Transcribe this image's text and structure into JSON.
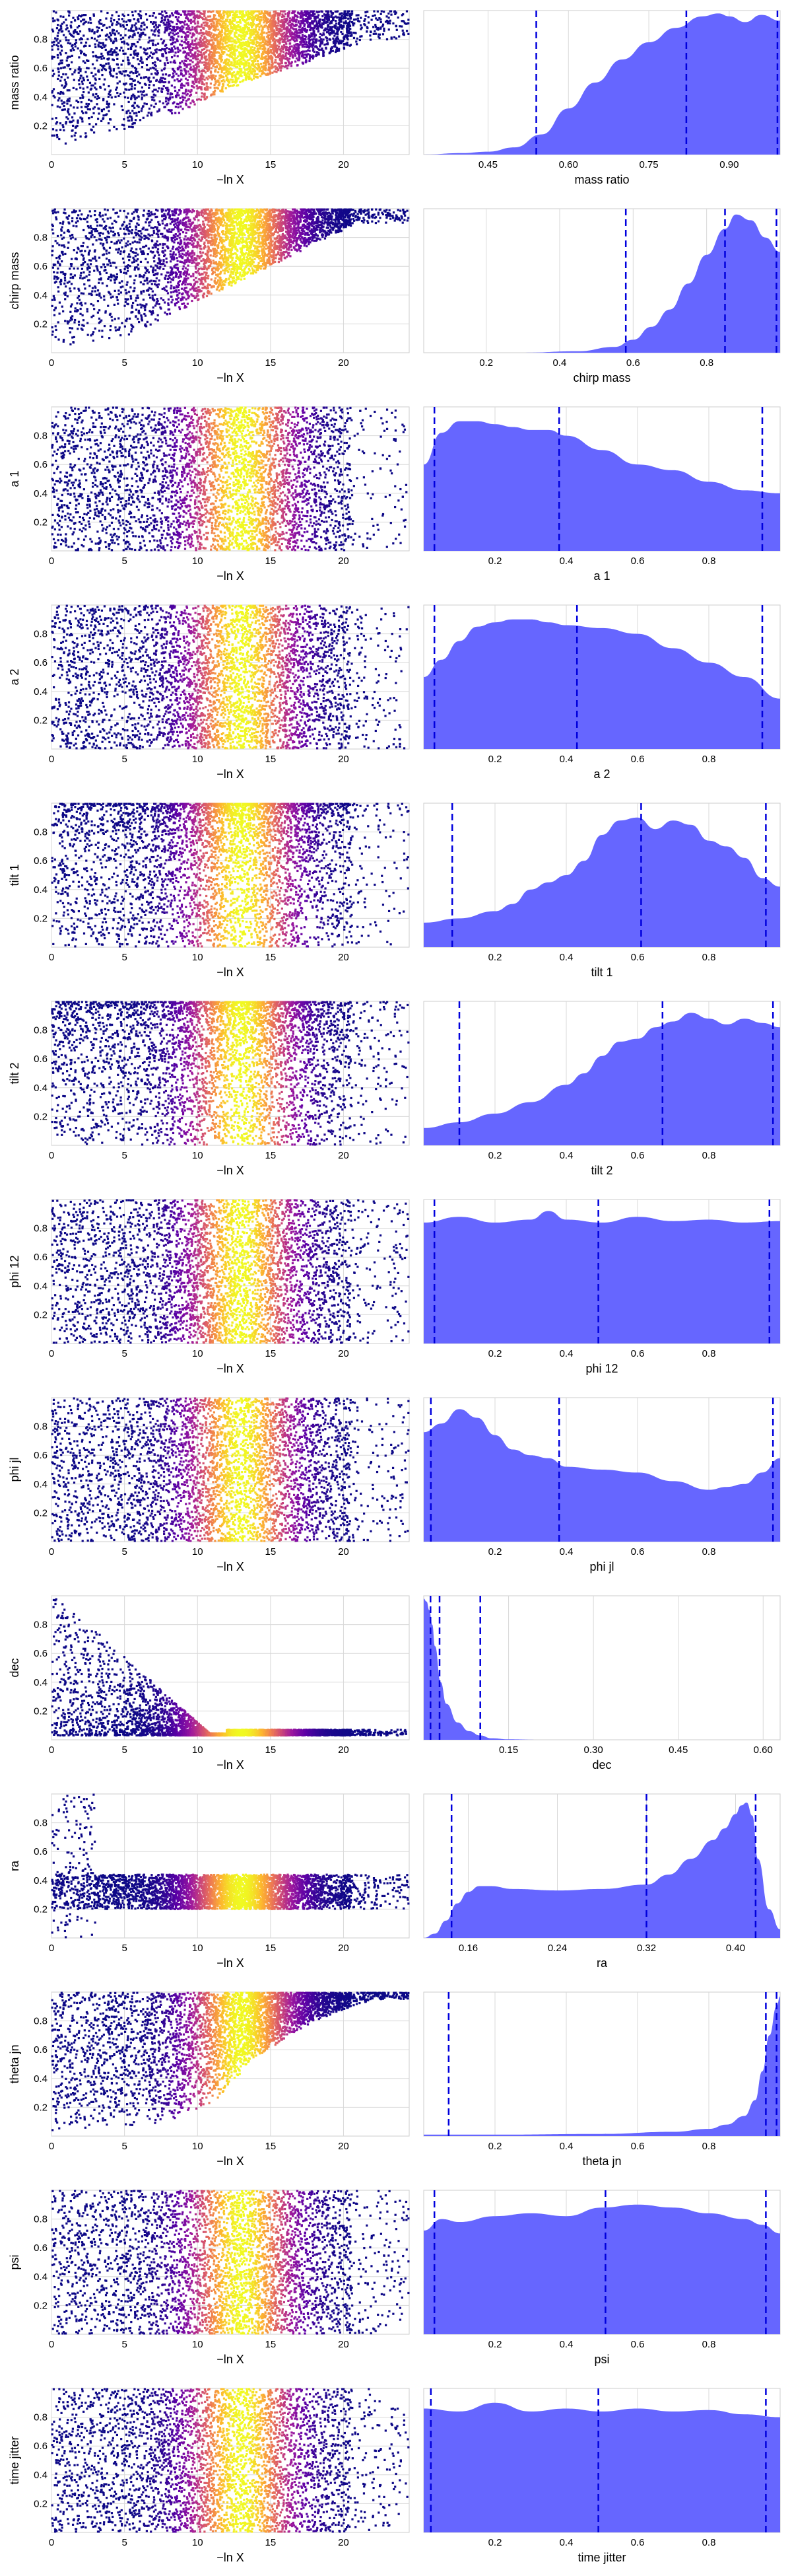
{
  "figure": {
    "trace_xlabel": "−ln X",
    "trace_xticks": [
      "0",
      "5",
      "10",
      "15",
      "20"
    ],
    "y_ticks": [
      "0.2",
      "0.4",
      "0.6",
      "0.8"
    ]
  },
  "colors": {
    "posterior_fill": "#6666ff",
    "quantile_line": "#0000dd",
    "colormap": [
      "#0d0887",
      "#5c01a6",
      "#9c179e",
      "#cc4778",
      "#ed7953",
      "#fdb42f",
      "#f0f921"
    ]
  },
  "chart_data": [
    {
      "parameter": "mass ratio",
      "trace": {
        "type": "scatter",
        "xlabel": "−ln X",
        "ylabel": "mass ratio",
        "xlim": [
          0,
          24.5
        ],
        "ylim": [
          0,
          1
        ],
        "pattern": "rising_lower_bound",
        "lower_bound_at_x": [
          [
            0,
            0.05
          ],
          [
            8,
            0.25
          ],
          [
            12,
            0.45
          ],
          [
            17,
            0.62
          ],
          [
            22,
            0.8
          ]
        ],
        "brightest_x": 13
      },
      "posterior": {
        "type": "area",
        "xlabel": "mass ratio",
        "xlim": [
          0.33,
          0.995
        ],
        "xticks": [
          "0.45",
          "0.60",
          "0.75",
          "0.90"
        ],
        "xtick_values": [
          0.45,
          0.6,
          0.75,
          0.9
        ],
        "quantiles": [
          0.54,
          0.82,
          0.99
        ],
        "x": [
          0.33,
          0.4,
          0.45,
          0.5,
          0.55,
          0.6,
          0.65,
          0.7,
          0.75,
          0.8,
          0.85,
          0.88,
          0.9,
          0.93,
          0.96,
          0.995
        ],
        "density": [
          0.0,
          0.01,
          0.02,
          0.05,
          0.14,
          0.32,
          0.5,
          0.66,
          0.78,
          0.88,
          0.96,
          0.98,
          0.96,
          0.92,
          0.97,
          0.93
        ]
      }
    },
    {
      "parameter": "chirp mass",
      "trace": {
        "type": "scatter",
        "xlabel": "−ln X",
        "ylabel": "chirp mass",
        "xlim": [
          0,
          24.5
        ],
        "ylim": [
          0,
          1
        ],
        "pattern": "rising_lower_bound",
        "lower_bound_at_x": [
          [
            0,
            0.02
          ],
          [
            5,
            0.1
          ],
          [
            10,
            0.35
          ],
          [
            15,
            0.6
          ],
          [
            21,
            0.9
          ]
        ],
        "brightest_x": 13
      },
      "posterior": {
        "type": "area",
        "xlabel": "chirp mass",
        "xlim": [
          0.03,
          1.0
        ],
        "xticks": [
          "0.2",
          "0.4",
          "0.6",
          "0.8"
        ],
        "xtick_values": [
          0.2,
          0.4,
          0.6,
          0.8
        ],
        "quantiles": [
          0.58,
          0.85,
          0.99
        ],
        "x": [
          0.03,
          0.3,
          0.45,
          0.55,
          0.6,
          0.65,
          0.7,
          0.75,
          0.8,
          0.85,
          0.88,
          0.92,
          0.96,
          1.0
        ],
        "density": [
          0.0,
          0.0,
          0.01,
          0.04,
          0.09,
          0.18,
          0.3,
          0.48,
          0.68,
          0.86,
          0.96,
          0.92,
          0.8,
          0.7
        ]
      }
    },
    {
      "parameter": "a 1",
      "trace": {
        "type": "scatter",
        "xlabel": "−ln X",
        "ylabel": "a 1",
        "xlim": [
          0,
          24.5
        ],
        "ylim": [
          0,
          1
        ],
        "pattern": "uniform",
        "brightest_x": 13
      },
      "posterior": {
        "type": "area",
        "xlabel": "a 1",
        "xlim": [
          0.0,
          1.0
        ],
        "xticks": [
          "0.2",
          "0.4",
          "0.6",
          "0.8"
        ],
        "xtick_values": [
          0.2,
          0.4,
          0.6,
          0.8
        ],
        "quantiles": [
          0.03,
          0.38,
          0.95
        ],
        "x": [
          0.0,
          0.05,
          0.1,
          0.15,
          0.2,
          0.25,
          0.3,
          0.35,
          0.4,
          0.5,
          0.6,
          0.7,
          0.8,
          0.9,
          1.0
        ],
        "density": [
          0.6,
          0.82,
          0.9,
          0.9,
          0.88,
          0.86,
          0.84,
          0.84,
          0.8,
          0.7,
          0.6,
          0.56,
          0.48,
          0.42,
          0.4
        ]
      }
    },
    {
      "parameter": "a 2",
      "trace": {
        "type": "scatter",
        "xlabel": "−ln X",
        "ylabel": "a 2",
        "xlim": [
          0,
          24.5
        ],
        "ylim": [
          0,
          1
        ],
        "pattern": "uniform",
        "brightest_x": 13
      },
      "posterior": {
        "type": "area",
        "xlabel": "a 2",
        "xlim": [
          0.0,
          1.0
        ],
        "xticks": [
          "0.2",
          "0.4",
          "0.6",
          "0.8"
        ],
        "xtick_values": [
          0.2,
          0.4,
          0.6,
          0.8
        ],
        "quantiles": [
          0.03,
          0.43,
          0.95
        ],
        "x": [
          0.0,
          0.05,
          0.1,
          0.15,
          0.2,
          0.25,
          0.3,
          0.35,
          0.4,
          0.5,
          0.6,
          0.7,
          0.8,
          0.9,
          1.0
        ],
        "density": [
          0.5,
          0.62,
          0.75,
          0.85,
          0.88,
          0.9,
          0.9,
          0.88,
          0.86,
          0.84,
          0.8,
          0.7,
          0.6,
          0.5,
          0.35
        ]
      }
    },
    {
      "parameter": "tilt 1",
      "trace": {
        "type": "scatter",
        "xlabel": "−ln X",
        "ylabel": "tilt 1",
        "xlim": [
          0,
          24.5
        ],
        "ylim": [
          0,
          1
        ],
        "pattern": "sparse_low",
        "brightest_x": 13
      },
      "posterior": {
        "type": "area",
        "xlabel": "tilt 1",
        "xlim": [
          0.0,
          1.0
        ],
        "xticks": [
          "0.2",
          "0.4",
          "0.6",
          "0.8"
        ],
        "xtick_values": [
          0.2,
          0.4,
          0.6,
          0.8
        ],
        "quantiles": [
          0.08,
          0.61,
          0.96
        ],
        "x": [
          0.0,
          0.1,
          0.2,
          0.25,
          0.3,
          0.35,
          0.4,
          0.45,
          0.5,
          0.55,
          0.6,
          0.65,
          0.7,
          0.75,
          0.8,
          0.85,
          0.9,
          0.95,
          1.0
        ],
        "density": [
          0.17,
          0.2,
          0.25,
          0.3,
          0.4,
          0.45,
          0.5,
          0.6,
          0.78,
          0.88,
          0.9,
          0.82,
          0.88,
          0.85,
          0.74,
          0.7,
          0.62,
          0.48,
          0.42
        ]
      }
    },
    {
      "parameter": "tilt 2",
      "trace": {
        "type": "scatter",
        "xlabel": "−ln X",
        "ylabel": "tilt 2",
        "xlim": [
          0,
          24.5
        ],
        "ylim": [
          0,
          1
        ],
        "pattern": "sparse_low",
        "brightest_x": 13
      },
      "posterior": {
        "type": "area",
        "xlabel": "tilt 2",
        "xlim": [
          0.0,
          1.0
        ],
        "xticks": [
          "0.2",
          "0.4",
          "0.6",
          "0.8"
        ],
        "xtick_values": [
          0.2,
          0.4,
          0.6,
          0.8
        ],
        "quantiles": [
          0.1,
          0.67,
          0.98
        ],
        "x": [
          0.0,
          0.1,
          0.2,
          0.3,
          0.4,
          0.45,
          0.5,
          0.55,
          0.6,
          0.65,
          0.7,
          0.75,
          0.8,
          0.85,
          0.9,
          0.95,
          1.0
        ],
        "density": [
          0.12,
          0.16,
          0.22,
          0.3,
          0.42,
          0.5,
          0.62,
          0.72,
          0.74,
          0.82,
          0.86,
          0.92,
          0.88,
          0.84,
          0.88,
          0.85,
          0.82
        ]
      }
    },
    {
      "parameter": "phi 12",
      "trace": {
        "type": "scatter",
        "xlabel": "−ln X",
        "ylabel": "phi 12",
        "xlim": [
          0,
          24.5
        ],
        "ylim": [
          0,
          1
        ],
        "pattern": "uniform",
        "brightest_x": 13
      },
      "posterior": {
        "type": "area",
        "xlabel": "phi 12",
        "xlim": [
          0.0,
          1.0
        ],
        "xticks": [
          "0.2",
          "0.4",
          "0.6",
          "0.8"
        ],
        "xtick_values": [
          0.2,
          0.4,
          0.6,
          0.8
        ],
        "quantiles": [
          0.03,
          0.49,
          0.97
        ],
        "x": [
          0.0,
          0.1,
          0.2,
          0.3,
          0.35,
          0.4,
          0.5,
          0.6,
          0.7,
          0.8,
          0.9,
          1.0
        ],
        "density": [
          0.84,
          0.88,
          0.84,
          0.86,
          0.92,
          0.86,
          0.84,
          0.88,
          0.85,
          0.86,
          0.84,
          0.85
        ]
      }
    },
    {
      "parameter": "phi jl",
      "trace": {
        "type": "scatter",
        "xlabel": "−ln X",
        "ylabel": "phi jl",
        "xlim": [
          0,
          24.5
        ],
        "ylim": [
          0,
          1
        ],
        "pattern": "uniform",
        "brightest_x": 13
      },
      "posterior": {
        "type": "area",
        "xlabel": "phi jl",
        "xlim": [
          0.0,
          1.0
        ],
        "xticks": [
          "0.2",
          "0.4",
          "0.6",
          "0.8"
        ],
        "xtick_values": [
          0.2,
          0.4,
          0.6,
          0.8
        ],
        "quantiles": [
          0.02,
          0.38,
          0.98
        ],
        "x": [
          0.0,
          0.05,
          0.1,
          0.15,
          0.2,
          0.25,
          0.3,
          0.35,
          0.4,
          0.5,
          0.6,
          0.7,
          0.8,
          0.85,
          0.9,
          0.95,
          1.0
        ],
        "density": [
          0.76,
          0.82,
          0.92,
          0.86,
          0.74,
          0.64,
          0.6,
          0.58,
          0.52,
          0.5,
          0.48,
          0.42,
          0.36,
          0.38,
          0.4,
          0.48,
          0.58
        ]
      }
    },
    {
      "parameter": "dec",
      "trace": {
        "type": "scatter",
        "xlabel": "−ln X",
        "ylabel": "dec",
        "xlim": [
          0,
          24.5
        ],
        "ylim": [
          0,
          1
        ],
        "pattern": "converging_low",
        "converge_value": 0.03,
        "brightest_x": 13
      },
      "posterior": {
        "type": "area",
        "xlabel": "dec",
        "xlim": [
          0.0,
          0.63
        ],
        "xticks": [
          "0.15",
          "0.30",
          "0.45",
          "0.60"
        ],
        "xtick_values": [
          0.15,
          0.3,
          0.45,
          0.6
        ],
        "quantiles": [
          0.012,
          0.028,
          0.1
        ],
        "x": [
          0.0,
          0.005,
          0.01,
          0.015,
          0.02,
          0.03,
          0.04,
          0.06,
          0.08,
          0.1,
          0.12,
          0.15,
          0.2,
          0.63
        ],
        "density": [
          0.98,
          0.96,
          0.9,
          0.8,
          0.65,
          0.4,
          0.25,
          0.12,
          0.06,
          0.03,
          0.01,
          0.003,
          0.0,
          0.0
        ]
      }
    },
    {
      "parameter": "ra",
      "trace": {
        "type": "scatter",
        "xlabel": "−ln X",
        "ylabel": "ra",
        "xlim": [
          0,
          24.5
        ],
        "ylim": [
          0,
          1
        ],
        "pattern": "converging_band",
        "band": [
          0.2,
          0.44
        ],
        "brightest_x": 13
      },
      "posterior": {
        "type": "area",
        "xlabel": "ra",
        "xlim": [
          0.12,
          0.44
        ],
        "xticks": [
          "0.16",
          "0.24",
          "0.32",
          "0.40"
        ],
        "xtick_values": [
          0.16,
          0.24,
          0.32,
          0.4
        ],
        "quantiles": [
          0.145,
          0.32,
          0.418
        ],
        "x": [
          0.12,
          0.13,
          0.14,
          0.15,
          0.16,
          0.17,
          0.18,
          0.2,
          0.24,
          0.28,
          0.32,
          0.34,
          0.36,
          0.38,
          0.39,
          0.4,
          0.405,
          0.41,
          0.415,
          0.42,
          0.43,
          0.44
        ],
        "density": [
          0.0,
          0.03,
          0.12,
          0.24,
          0.32,
          0.36,
          0.36,
          0.34,
          0.33,
          0.34,
          0.37,
          0.44,
          0.55,
          0.68,
          0.76,
          0.86,
          0.92,
          0.94,
          0.85,
          0.55,
          0.2,
          0.06
        ]
      }
    },
    {
      "parameter": "theta jn",
      "trace": {
        "type": "scatter",
        "xlabel": "−ln X",
        "ylabel": "theta jn",
        "xlim": [
          0,
          24.5
        ],
        "ylim": [
          0,
          1
        ],
        "pattern": "rising_lower_bound",
        "lower_bound_at_x": [
          [
            0,
            0.02
          ],
          [
            8,
            0.1
          ],
          [
            11,
            0.22
          ],
          [
            14,
            0.55
          ],
          [
            18,
            0.8
          ],
          [
            22,
            0.95
          ]
        ],
        "brightest_x": 13
      },
      "posterior": {
        "type": "area",
        "xlabel": "theta jn",
        "xlim": [
          0.0,
          1.0
        ],
        "xticks": [
          "0.2",
          "0.4",
          "0.6",
          "0.8"
        ],
        "xtick_values": [
          0.2,
          0.4,
          0.6,
          0.8
        ],
        "quantiles": [
          0.07,
          0.96,
          0.99
        ],
        "x": [
          0.0,
          0.2,
          0.5,
          0.7,
          0.8,
          0.85,
          0.9,
          0.93,
          0.95,
          0.97,
          0.99,
          1.0
        ],
        "density": [
          0.01,
          0.01,
          0.015,
          0.03,
          0.05,
          0.08,
          0.14,
          0.25,
          0.45,
          0.7,
          0.9,
          0.97
        ]
      }
    },
    {
      "parameter": "psi",
      "trace": {
        "type": "scatter",
        "xlabel": "−ln X",
        "ylabel": "psi",
        "xlim": [
          0,
          24.5
        ],
        "ylim": [
          0,
          1
        ],
        "pattern": "uniform",
        "brightest_x": 13
      },
      "posterior": {
        "type": "area",
        "xlabel": "psi",
        "xlim": [
          0.0,
          1.0
        ],
        "xticks": [
          "0.2",
          "0.4",
          "0.6",
          "0.8"
        ],
        "xtick_values": [
          0.2,
          0.4,
          0.6,
          0.8
        ],
        "quantiles": [
          0.03,
          0.51,
          0.96
        ],
        "x": [
          0.0,
          0.05,
          0.1,
          0.2,
          0.3,
          0.4,
          0.5,
          0.6,
          0.7,
          0.8,
          0.9,
          0.95,
          1.0
        ],
        "density": [
          0.72,
          0.8,
          0.78,
          0.82,
          0.84,
          0.82,
          0.88,
          0.9,
          0.88,
          0.84,
          0.8,
          0.76,
          0.7
        ]
      }
    },
    {
      "parameter": "time jitter",
      "trace": {
        "type": "scatter",
        "xlabel": "−ln X",
        "ylabel": "time jitter",
        "xlim": [
          0,
          24.5
        ],
        "ylim": [
          0,
          1
        ],
        "pattern": "uniform",
        "brightest_x": 13
      },
      "posterior": {
        "type": "area",
        "xlabel": "time jitter",
        "xlim": [
          0.0,
          1.0
        ],
        "xticks": [
          "0.2",
          "0.4",
          "0.6",
          "0.8"
        ],
        "xtick_values": [
          0.2,
          0.4,
          0.6,
          0.8
        ],
        "quantiles": [
          0.02,
          0.49,
          0.96
        ],
        "x": [
          0.0,
          0.1,
          0.2,
          0.3,
          0.4,
          0.5,
          0.6,
          0.7,
          0.8,
          0.9,
          1.0
        ],
        "density": [
          0.86,
          0.84,
          0.9,
          0.84,
          0.86,
          0.84,
          0.86,
          0.84,
          0.85,
          0.82,
          0.8
        ]
      }
    }
  ]
}
